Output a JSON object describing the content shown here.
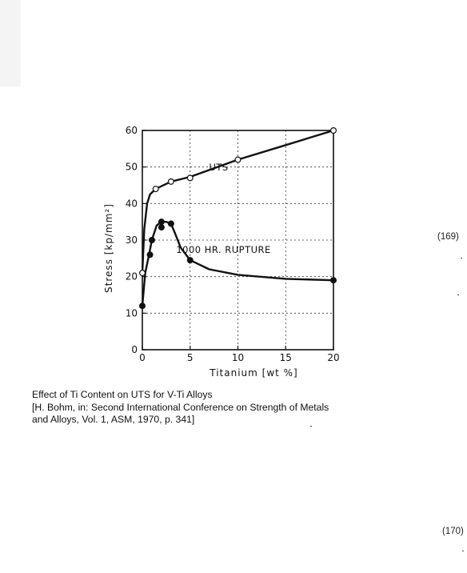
{
  "chart_data": {
    "type": "line",
    "xlabel": "Titanium [wt %]",
    "ylabel": "Stress [kp/mm²]",
    "xlim": [
      0,
      20
    ],
    "ylim": [
      0,
      60
    ],
    "x_ticks": [
      "0",
      "5",
      "10",
      "15",
      "20"
    ],
    "y_ticks": [
      "0",
      "10",
      "20",
      "30",
      "40",
      "50",
      "60"
    ],
    "grid": true,
    "series": [
      {
        "name": "UTS",
        "marker": "open-circle",
        "points": [
          [
            0,
            21
          ],
          [
            1.4,
            44
          ],
          [
            3,
            46
          ],
          [
            5,
            47
          ],
          [
            10,
            52
          ],
          [
            20,
            60
          ]
        ],
        "curve": [
          [
            0,
            21
          ],
          [
            0.2,
            33
          ],
          [
            0.5,
            40
          ],
          [
            0.8,
            42.5
          ],
          [
            1.4,
            44
          ],
          [
            3,
            46
          ],
          [
            5,
            47.3
          ],
          [
            10,
            52
          ],
          [
            15,
            56
          ],
          [
            20,
            60
          ]
        ]
      },
      {
        "name": "1000 HR. RUPTURE",
        "marker": "filled-circle",
        "points": [
          [
            0,
            12
          ],
          [
            0.8,
            26
          ],
          [
            1,
            30
          ],
          [
            2,
            33.5
          ],
          [
            2,
            35
          ],
          [
            3,
            34.5
          ],
          [
            5,
            24.5
          ],
          [
            20,
            19
          ]
        ],
        "curve": [
          [
            0,
            12
          ],
          [
            0.3,
            21
          ],
          [
            0.7,
            26
          ],
          [
            1,
            30
          ],
          [
            1.5,
            34
          ],
          [
            2,
            35
          ],
          [
            2.5,
            35
          ],
          [
            3,
            34.5
          ],
          [
            3.4,
            32
          ],
          [
            4,
            28
          ],
          [
            5,
            24.5
          ],
          [
            7,
            22
          ],
          [
            10,
            20.5
          ],
          [
            15,
            19.4
          ],
          [
            20,
            19
          ]
        ]
      }
    ]
  },
  "caption": {
    "line1": "Effect of Ti Content on UTS for V-Ti Alloys",
    "line2": "[H. Bohm, in: Second International Conference on Strength of Metals",
    "line3": "and Alloys, Vol. 1, ASM, 1970, p. 341]"
  },
  "page_numbers": {
    "current": "(169)",
    "next": "(170)"
  }
}
